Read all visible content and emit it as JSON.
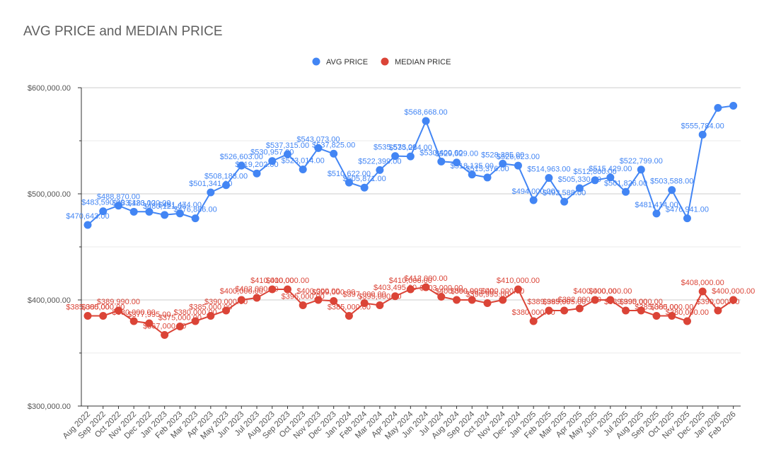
{
  "chart_data": {
    "type": "line",
    "title": "AVG PRICE and MEDIAN PRICE",
    "xlabel": "",
    "ylabel": "",
    "ylim": [
      300000,
      600000
    ],
    "yticks": [
      "$600,000.00",
      "$500,000.00",
      "$400,000.00",
      "$300,000.00"
    ],
    "legend_position": "top-center",
    "categories": [
      "Aug 2022",
      "Sep 2022",
      "Oct 2022",
      "Nov 2022",
      "Dec 2022",
      "Jan 2023",
      "Feb 2023",
      "Mar 2023",
      "Apr 2023",
      "May 2023",
      "Jun 2023",
      "Jul 2023",
      "Aug 2023",
      "Sep 2023",
      "Oct 2023",
      "Nov 2023",
      "Dec 2023",
      "Jan 2024",
      "Feb 2024",
      "Mar 2024",
      "Apr 2024",
      "May 2024",
      "Jun 2024",
      "Jul 2024",
      "Aug 2024",
      "Sep 2024",
      "Oct 2024",
      "Nov 2024",
      "Dec 2024",
      "Jan 2025",
      "Feb 2025",
      "Mar 2025",
      "Apr 2025",
      "May 2025",
      "Jun 2025",
      "Jul 2025",
      "Aug 2025",
      "Sep 2025",
      "Oct 2025",
      "Nov 2025",
      "Dec 2025",
      "Jan 2026",
      "Feb 2026"
    ],
    "series": [
      {
        "name": "AVG PRICE",
        "color": "#4285f4",
        "values": [
          470643,
          483590,
          488870,
          483120,
          483120,
          480121,
          481474,
          476886,
          501341,
          508183,
          526603,
          519202,
          530957,
          537315,
          523014,
          543073,
          537825,
          510622,
          505871,
          522399,
          535573,
          535284,
          568668,
          530400,
          529529,
          518135,
          515376,
          528385,
          526623,
          494000,
          514963,
          492588,
          505330,
          512800,
          515429,
          501826,
          522799,
          481414,
          503588,
          476941,
          555784,
          581000,
          583000
        ],
        "labels": [
          "$470,643.00",
          "$483,590.00",
          "$488,870.00",
          "$483,120.00",
          "$483,120.00",
          "$480,121.00",
          "$481,474.00",
          "$476,886.00",
          "$501,341.00",
          "$508,183.00",
          "$526,603.00",
          "$519,202.00",
          "$530,957.00",
          "$537,315.00",
          "$523,014.00",
          "$543,073.00",
          "$537,825.00",
          "$510,622.00",
          "$505,871.00",
          "$522,399.00",
          "$535,573.00",
          "$535,284.00",
          "$568,668.00",
          "$530,400.00",
          "$529,529.00",
          "$518,135.00",
          "$515,376.00",
          "$528,385.00",
          "$526,623.00",
          "$494,000.00",
          "$514,963.00",
          "$492,588.00",
          "$505,330.00",
          "$512,800.00",
          "$515,429.00",
          "$501,826.00",
          "$522,799.00",
          "$481,414.00",
          "$503,588.00",
          "$476,941.00",
          "$555,784.00",
          "",
          ""
        ]
      },
      {
        "name": "MEDIAN PRICE",
        "color": "#db4437",
        "values": [
          385000,
          385000,
          389990,
          380000,
          377995,
          367000,
          375000,
          380000,
          385000,
          390000,
          400000,
          402000,
          410000,
          410000,
          395000,
          400000,
          399000,
          385000,
          397000,
          395000,
          403495,
          410000,
          412000,
          403000,
          400000,
          399995,
          396995,
          400000,
          410000,
          380000,
          389995,
          389995,
          392000,
          400000,
          400000,
          389995,
          390000,
          385000,
          385000,
          380000,
          408000,
          390000,
          400000
        ],
        "labels": [
          "$385,000.00",
          "$385,000.00",
          "$389,990.00",
          "$380,000.00",
          "$377,995.00",
          "$367,000.00",
          "$375,000.00",
          "$380,000.00",
          "$385,000.00",
          "$390,000.00",
          "$400,000.00",
          "$402,000.00",
          "$410,000.00",
          "$410,000.00",
          "$395,000.00",
          "$400,000.00",
          "$399,000.00",
          "$385,000.00",
          "$397,000.00",
          "$395,000.00",
          "$403,495.00",
          "$410,000.00",
          "$412,000.00",
          "$403,000.00",
          "$400,000.00",
          "$399,995.00",
          "$396,995.00",
          "$400,000.00",
          "$410,000.00",
          "$380,000.00",
          "$389,995.00",
          "$389,995.00",
          "$392,000.00",
          "$400,000.00",
          "$400,000.00",
          "$389,995.00",
          "$390,000.00",
          "$385,000.00",
          "$385,000.00",
          "$380,000.00",
          "$408,000.00",
          "$390,000.00",
          "$400,000.00"
        ]
      }
    ]
  }
}
